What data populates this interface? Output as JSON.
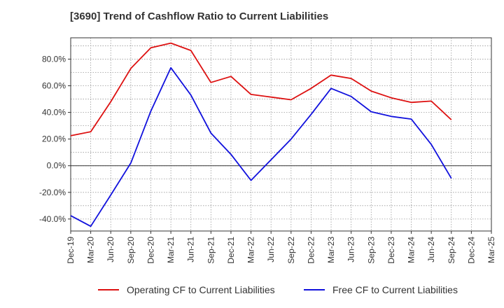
{
  "chart_data": {
    "type": "line",
    "title": "[3690]  Trend of Cashflow Ratio to Current Liabilities",
    "xlabel": "",
    "ylabel": "",
    "categories": [
      "Dec-19",
      "Mar-20",
      "Jun-20",
      "Sep-20",
      "Dec-20",
      "Mar-21",
      "Jun-21",
      "Sep-21",
      "Dec-21",
      "Mar-22",
      "Jun-22",
      "Sep-22",
      "Dec-22",
      "Mar-23",
      "Jun-23",
      "Sep-23",
      "Dec-23",
      "Mar-24",
      "Jun-24",
      "Sep-24",
      "Dec-24",
      "Mar-25"
    ],
    "x_tick_labels": [
      "Dec-19",
      "Mar-20",
      "Jun-20",
      "Sep-20",
      "Dec-20",
      "Mar-21",
      "Jun-21",
      "Sep-21",
      "Dec-21",
      "Mar-22",
      "Jun-22",
      "Sep-22",
      "Dec-22",
      "Mar-23",
      "Jun-23",
      "Sep-23",
      "Dec-23",
      "Mar-24",
      "Jun-24",
      "Sep-24",
      "Dec-24",
      "Mar-25"
    ],
    "y_tick_labels": [
      "-40.0%",
      "-20.0%",
      "0.0%",
      "20.0%",
      "40.0%",
      "60.0%",
      "80.0%"
    ],
    "y_ticks": [
      -40,
      -20,
      0,
      20,
      40,
      60,
      80
    ],
    "ylim": [
      -49,
      96
    ],
    "grid": true,
    "legend_position": "bottom",
    "series": [
      {
        "name": "Operating CF to Current Liabilities",
        "color": "#dd1111",
        "values": [
          22.5,
          25.5,
          48,
          73,
          88.5,
          92,
          86.5,
          62.5,
          67,
          53.5,
          51.5,
          49.5,
          58,
          68,
          65.5,
          56,
          51,
          47.5,
          48.5,
          34.5,
          null,
          null
        ]
      },
      {
        "name": "Free CF to Current Liabilities",
        "color": "#1111dd",
        "values": [
          -37.5,
          -45.5,
          -22,
          2,
          41,
          73.5,
          53,
          24.5,
          8.5,
          -11,
          4.5,
          20,
          38.5,
          58,
          52,
          40.5,
          37,
          35,
          16,
          -9.5,
          null,
          null
        ]
      }
    ]
  }
}
